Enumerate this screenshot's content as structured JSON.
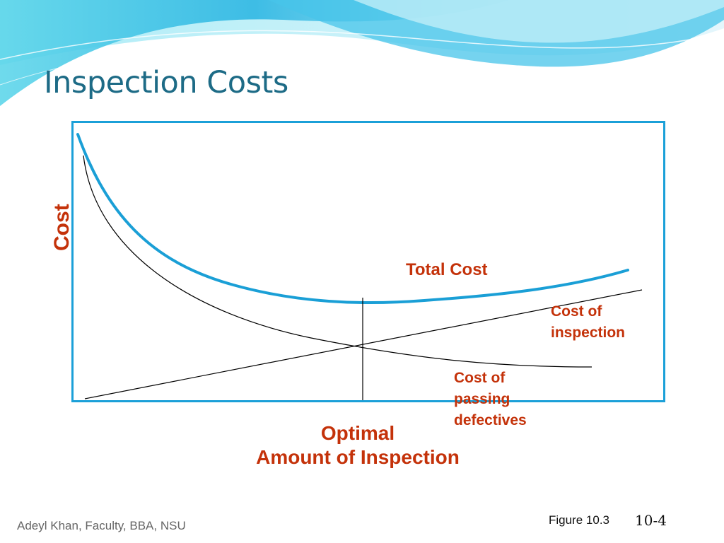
{
  "slide": {
    "title": "Inspection Costs",
    "footer_author": "Adeyl Khan, Faculty, BBA, NSU",
    "figure_ref": "Figure 10.3",
    "page_number": "10-4"
  },
  "diagram": {
    "y_axis_label": "Cost",
    "optimal_label_line1": "Optimal",
    "optimal_label_line2": "Amount of Inspection",
    "curves": {
      "total_cost": "Total Cost",
      "inspection_line1": "Cost of",
      "inspection_line2": "inspection",
      "passing_line1": "Cost of",
      "passing_line2": "passing",
      "passing_line3": "defectives"
    }
  },
  "colors": {
    "title": "#1d6b86",
    "frame": "#1ba0d8",
    "total_cost_curve": "#1a9fd6",
    "label_red": "#c4320a",
    "thin_lines": "#000000"
  }
}
